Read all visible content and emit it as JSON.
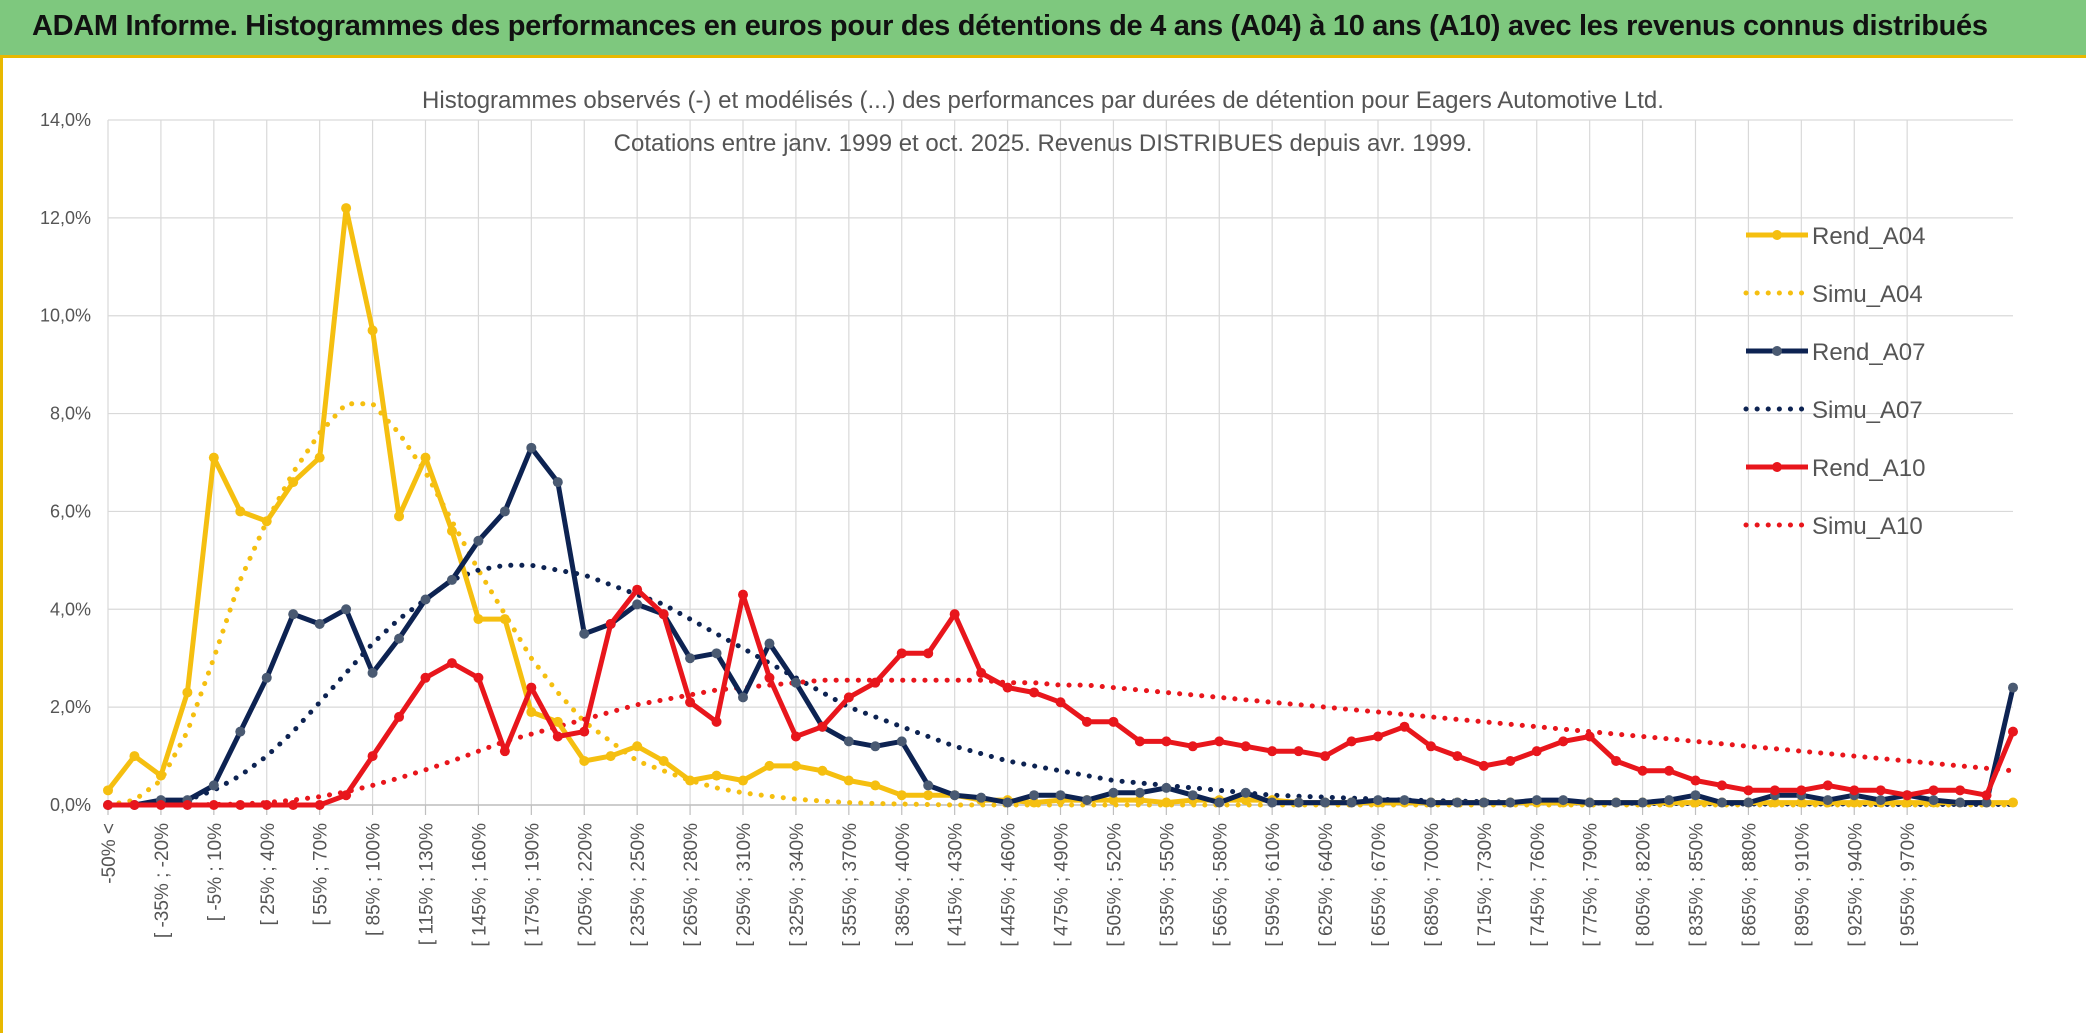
{
  "header": {
    "title": "ADAM Informe. Histogrammes des performances en euros pour des détentions de 4 ans (A04) à 10 ans (A10) avec les revenus connus distribués"
  },
  "chart_data": {
    "type": "line",
    "title_line1": "Histogrammes observés (-) et modélisés (...) des performances par durées de détention pour Eagers Automotive Ltd.",
    "title_line2": "Cotations entre janv. 1999 et oct. 2025. Revenus DISTRIBUES depuis avr. 1999.",
    "ylim": [
      0,
      14
    ],
    "y_ticks": [
      "0,0%",
      "2,0%",
      "4,0%",
      "6,0%",
      "8,0%",
      "10,0%",
      "12,0%",
      "14,0%"
    ],
    "x_tick_labels": [
      "-50% <",
      "[ -35% ; -20%",
      "[ -5% ; 10%",
      "[ 25% ; 40%",
      "[ 55% ; 70%",
      "[ 85% ; 100%",
      "[ 115% ; 130%",
      "[ 145% ; 160%",
      "[ 175% ; 190%",
      "[ 205% ; 220%",
      "[ 235% ; 250%",
      "[ 265% ; 280%",
      "[ 295% ; 310%",
      "[ 325% ; 340%",
      "[ 355% ; 370%",
      "[ 385% ; 400%",
      "[ 415% ; 430%",
      "[ 445% ; 460%",
      "[ 475% ; 490%",
      "[ 505% ; 520%",
      "[ 535% ; 550%",
      "[ 565% ; 580%",
      "[ 595% ; 610%",
      "[ 625% ; 640%",
      "[ 655% ; 670%",
      "[ 685% ; 700%",
      "[ 715% ; 730%",
      "[ 745% ; 760%",
      "[ 775% ; 790%",
      "[ 805% ; 820%",
      "[ 835% ; 850%",
      "[ 865% ; 880%",
      "[ 895% ; 910%",
      "[ 925% ; 940%",
      "[ 955% ; 970%"
    ],
    "grid": true,
    "legend_position": "right",
    "series": [
      {
        "name": "Rend_A04",
        "style": "solid",
        "color": "#f5bf10",
        "values": [
          0.3,
          1.0,
          0.6,
          2.3,
          7.1,
          6.0,
          5.8,
          6.6,
          7.1,
          12.2,
          9.7,
          5.9,
          7.1,
          5.6,
          3.8,
          3.8,
          1.9,
          1.7,
          0.9,
          1.0,
          1.2,
          0.9,
          0.5,
          0.6,
          0.5,
          0.8,
          0.8,
          0.7,
          0.5,
          0.4,
          0.2,
          0.2,
          0.2,
          0.1,
          0.1,
          0.05,
          0.1,
          0.1,
          0.1,
          0.1,
          0.05,
          0.1,
          0.1,
          0.1,
          0.1,
          0.05,
          0.05,
          0.05,
          0.05,
          0.05,
          0.05,
          0.05,
          0.05,
          0.05,
          0.05,
          0.05,
          0.05,
          0.05,
          0.05,
          0.05,
          0.05,
          0.05,
          0.05,
          0.05,
          0.05,
          0.05,
          0.05,
          0.05,
          0.05,
          0.05,
          0.05,
          0.05,
          0.05
        ]
      },
      {
        "name": "Simu_A04",
        "style": "dotted",
        "color": "#f5bf10",
        "values": [
          0.0,
          0.1,
          0.5,
          1.5,
          3.0,
          4.6,
          5.8,
          6.8,
          7.6,
          8.2,
          8.2,
          7.6,
          6.8,
          5.8,
          4.8,
          3.9,
          3.0,
          2.3,
          1.7,
          1.3,
          0.9,
          0.7,
          0.5,
          0.35,
          0.25,
          0.18,
          0.12,
          0.08,
          0.05,
          0.03,
          0.02,
          0.01,
          0.0,
          0.0,
          0.0,
          0.0,
          0.0,
          0.0,
          0.0,
          0.0,
          0.0,
          0.0,
          0.0,
          0.0,
          0.0,
          0.0,
          0.0,
          0.0,
          0.0,
          0.0,
          0.0,
          0.0,
          0.0,
          0.0,
          0.0,
          0.0,
          0.0,
          0.0,
          0.0,
          0.0,
          0.0,
          0.0,
          0.0,
          0.0,
          0.0,
          0.0,
          0.0,
          0.0,
          0.0,
          0.0,
          0.0,
          0.0,
          0.0
        ]
      },
      {
        "name": "Rend_A07",
        "style": "solid",
        "color": "#0d2352",
        "values": [
          0.0,
          0.0,
          0.1,
          0.1,
          0.4,
          1.5,
          2.6,
          3.9,
          3.7,
          4.0,
          2.7,
          3.4,
          4.2,
          4.6,
          5.4,
          6.0,
          7.3,
          6.6,
          3.5,
          3.7,
          4.1,
          3.9,
          3.0,
          3.1,
          2.2,
          3.3,
          2.5,
          1.6,
          1.3,
          1.2,
          1.3,
          0.4,
          0.2,
          0.15,
          0.05,
          0.2,
          0.2,
          0.1,
          0.25,
          0.25,
          0.35,
          0.2,
          0.05,
          0.25,
          0.05,
          0.05,
          0.05,
          0.05,
          0.1,
          0.1,
          0.05,
          0.05,
          0.05,
          0.05,
          0.1,
          0.1,
          0.05,
          0.05,
          0.05,
          0.1,
          0.2,
          0.05,
          0.05,
          0.2,
          0.2,
          0.1,
          0.2,
          0.1,
          0.2,
          0.1,
          0.05,
          0.05,
          2.4
        ]
      },
      {
        "name": "Simu_A07",
        "style": "dotted",
        "color": "#0d2352",
        "values": [
          0.0,
          0.0,
          0.05,
          0.1,
          0.3,
          0.6,
          1.0,
          1.5,
          2.1,
          2.7,
          3.3,
          3.8,
          4.2,
          4.6,
          4.8,
          4.9,
          4.9,
          4.8,
          4.7,
          4.5,
          4.3,
          4.1,
          3.8,
          3.5,
          3.2,
          2.9,
          2.6,
          2.3,
          2.0,
          1.8,
          1.6,
          1.4,
          1.2,
          1.05,
          0.9,
          0.8,
          0.7,
          0.6,
          0.5,
          0.45,
          0.4,
          0.35,
          0.3,
          0.25,
          0.2,
          0.18,
          0.16,
          0.14,
          0.12,
          0.1,
          0.09,
          0.08,
          0.07,
          0.06,
          0.05,
          0.05,
          0.04,
          0.04,
          0.03,
          0.03,
          0.03,
          0.02,
          0.02,
          0.02,
          0.02,
          0.02,
          0.02,
          0.01,
          0.01,
          0.01,
          0.01,
          0.01,
          0.01
        ]
      },
      {
        "name": "Rend_A10",
        "style": "solid",
        "color": "#e8161c",
        "values": [
          0.0,
          0.0,
          0.0,
          0.0,
          0.0,
          0.0,
          0.0,
          0.0,
          0.0,
          0.2,
          1.0,
          1.8,
          2.6,
          2.9,
          2.6,
          1.1,
          2.4,
          1.4,
          1.5,
          3.7,
          4.4,
          3.9,
          2.1,
          1.7,
          4.3,
          2.6,
          1.4,
          1.6,
          2.2,
          2.5,
          3.1,
          3.1,
          3.9,
          2.7,
          2.4,
          2.3,
          2.1,
          1.7,
          1.7,
          1.3,
          1.3,
          1.2,
          1.3,
          1.2,
          1.1,
          1.1,
          1.0,
          1.3,
          1.4,
          1.6,
          1.2,
          1.0,
          0.8,
          0.9,
          1.1,
          1.3,
          1.4,
          0.9,
          0.7,
          0.7,
          0.5,
          0.4,
          0.3,
          0.3,
          0.3,
          0.4,
          0.3,
          0.3,
          0.2,
          0.3,
          0.3,
          0.2,
          1.5
        ]
      },
      {
        "name": "Simu_A10",
        "style": "dotted",
        "color": "#e8161c",
        "values": [
          0.0,
          0.0,
          0.0,
          0.0,
          0.01,
          0.02,
          0.05,
          0.1,
          0.17,
          0.27,
          0.4,
          0.55,
          0.72,
          0.9,
          1.1,
          1.3,
          1.45,
          1.6,
          1.75,
          1.9,
          2.05,
          2.15,
          2.25,
          2.35,
          2.4,
          2.45,
          2.5,
          2.55,
          2.55,
          2.55,
          2.55,
          2.55,
          2.55,
          2.55,
          2.5,
          2.5,
          2.45,
          2.45,
          2.4,
          2.35,
          2.3,
          2.25,
          2.2,
          2.15,
          2.1,
          2.05,
          2.0,
          1.95,
          1.9,
          1.85,
          1.8,
          1.75,
          1.7,
          1.65,
          1.6,
          1.55,
          1.5,
          1.45,
          1.4,
          1.35,
          1.3,
          1.25,
          1.2,
          1.15,
          1.1,
          1.05,
          1.0,
          0.95,
          0.9,
          0.85,
          0.8,
          0.75,
          0.7
        ]
      }
    ]
  }
}
